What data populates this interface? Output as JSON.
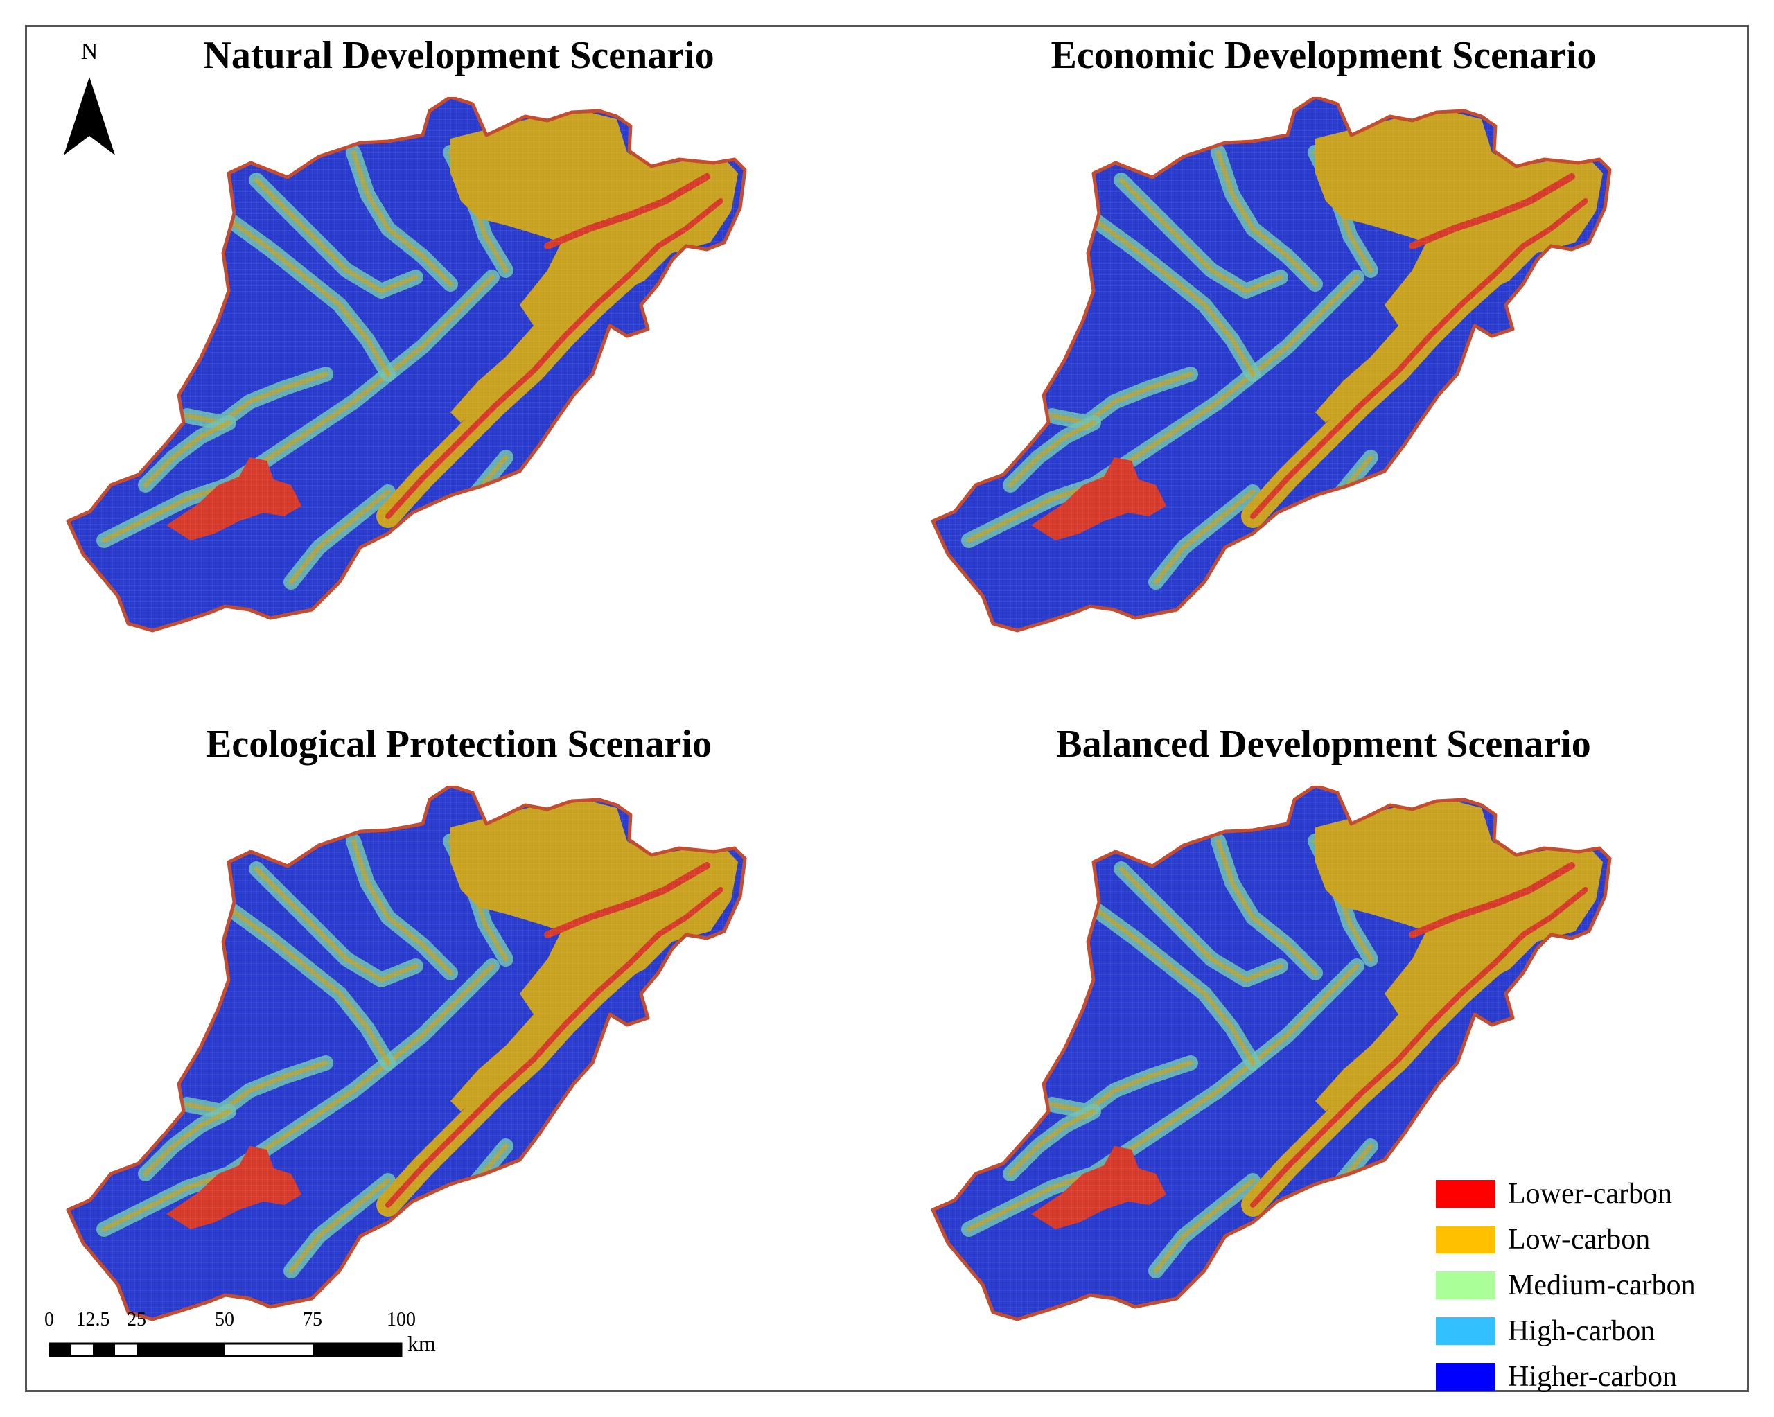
{
  "panels": [
    {
      "title": "Natural Development Scenario"
    },
    {
      "title": "Economic Development Scenario"
    },
    {
      "title": "Ecological Protection Scenario"
    },
    {
      "title": "Balanced Development Scenario"
    }
  ],
  "legend": [
    {
      "label": "Lower-carbon",
      "color": "#ff0000"
    },
    {
      "label": "Low-carbon",
      "color": "#ffc000"
    },
    {
      "label": "Medium-carbon",
      "color": "#aaff99"
    },
    {
      "label": "High-carbon",
      "color": "#33c0ff"
    },
    {
      "label": "Higher-carbon",
      "color": "#0000ff"
    }
  ],
  "map_colors": {
    "base": "#2a3ccf",
    "low": "#c9a21f",
    "medium": "#6fc2b4",
    "lower": "#d83a2a",
    "edge": "#c44d2f"
  },
  "north_arrow": {
    "label": "N"
  },
  "scalebar": {
    "ticks": [
      "0",
      "12.5",
      "25",
      "50",
      "75",
      "100"
    ],
    "unit": "km"
  }
}
